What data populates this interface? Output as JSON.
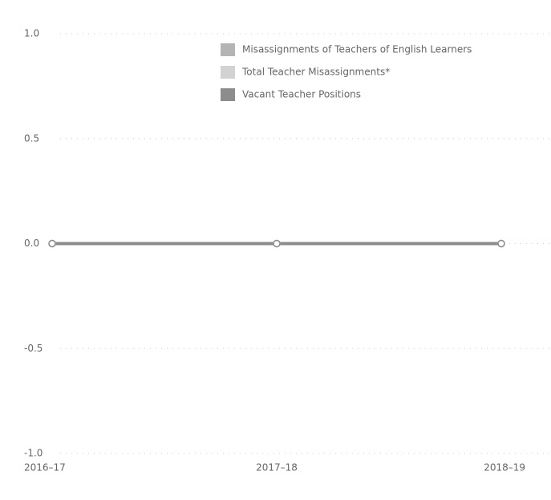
{
  "chart_data": {
    "type": "line",
    "categories": [
      "2016–17",
      "2017–18",
      "2018–19"
    ],
    "series": [
      {
        "name": "Misassignments of Teachers of English Learners",
        "color": "#b4b4b4",
        "values": [
          0,
          0,
          0
        ]
      },
      {
        "name": "Total Teacher Misassignments*",
        "color": "#d2d2d2",
        "values": [
          0,
          0,
          0
        ]
      },
      {
        "name": "Vacant Teacher Positions",
        "color": "#8c8c8c",
        "values": [
          0,
          0,
          0
        ]
      }
    ],
    "ylim": [
      -1,
      1
    ],
    "yticks": [
      {
        "value": 1,
        "label": "1.0"
      },
      0.5,
      {
        "value": 0,
        "label": "0.0"
      },
      -0.5,
      {
        "value": -1,
        "label": "-1.0"
      }
    ],
    "grid": true,
    "legend": "top"
  }
}
